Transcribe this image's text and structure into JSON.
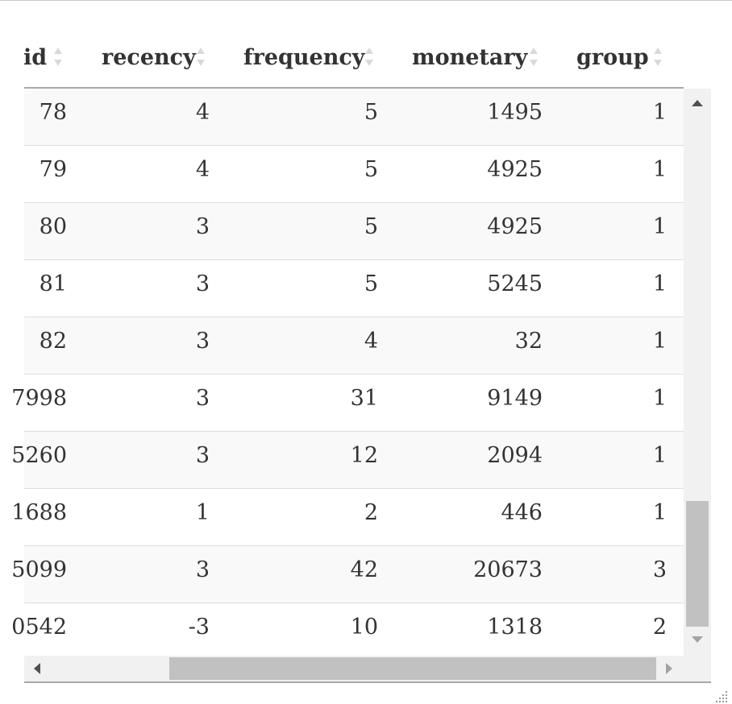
{
  "table": {
    "columns": [
      {
        "key": "id",
        "label": "id"
      },
      {
        "key": "recency",
        "label": "recency"
      },
      {
        "key": "frequency",
        "label": "frequency"
      },
      {
        "key": "monetary",
        "label": "monetary"
      },
      {
        "key": "group",
        "label": "group"
      }
    ],
    "rows": [
      {
        "id": "78",
        "recency": "4",
        "frequency": "5",
        "monetary": "1495",
        "group": "1"
      },
      {
        "id": "79",
        "recency": "4",
        "frequency": "5",
        "monetary": "4925",
        "group": "1"
      },
      {
        "id": "80",
        "recency": "3",
        "frequency": "5",
        "monetary": "4925",
        "group": "1"
      },
      {
        "id": "81",
        "recency": "3",
        "frequency": "5",
        "monetary": "5245",
        "group": "1"
      },
      {
        "id": "82",
        "recency": "3",
        "frequency": "4",
        "monetary": "32",
        "group": "1"
      },
      {
        "id": "7998",
        "recency": "3",
        "frequency": "31",
        "monetary": "9149",
        "group": "1"
      },
      {
        "id": "5260",
        "recency": "3",
        "frequency": "12",
        "monetary": "2094",
        "group": "1"
      },
      {
        "id": "1688",
        "recency": "1",
        "frequency": "2",
        "monetary": "446",
        "group": "1"
      },
      {
        "id": "5099",
        "recency": "3",
        "frequency": "42",
        "monetary": "20673",
        "group": "3"
      },
      {
        "id": "0542",
        "recency": "-3",
        "frequency": "10",
        "monetary": "1318",
        "group": "2"
      }
    ]
  },
  "icons": {
    "sort": "sort-both-icon",
    "scroll_up": "arrow-up-icon",
    "scroll_down": "arrow-down-icon",
    "scroll_left": "arrow-left-icon",
    "scroll_right": "arrow-right-icon",
    "resize": "resize-grip-icon"
  },
  "colors": {
    "header_border": "#a9a9a9",
    "row_odd": "#f9f9f9",
    "row_even": "#ffffff",
    "row_border": "#dddddd",
    "text": "#333333",
    "scroll_track": "#f1f1f1",
    "scroll_thumb": "#c1c1c1"
  }
}
